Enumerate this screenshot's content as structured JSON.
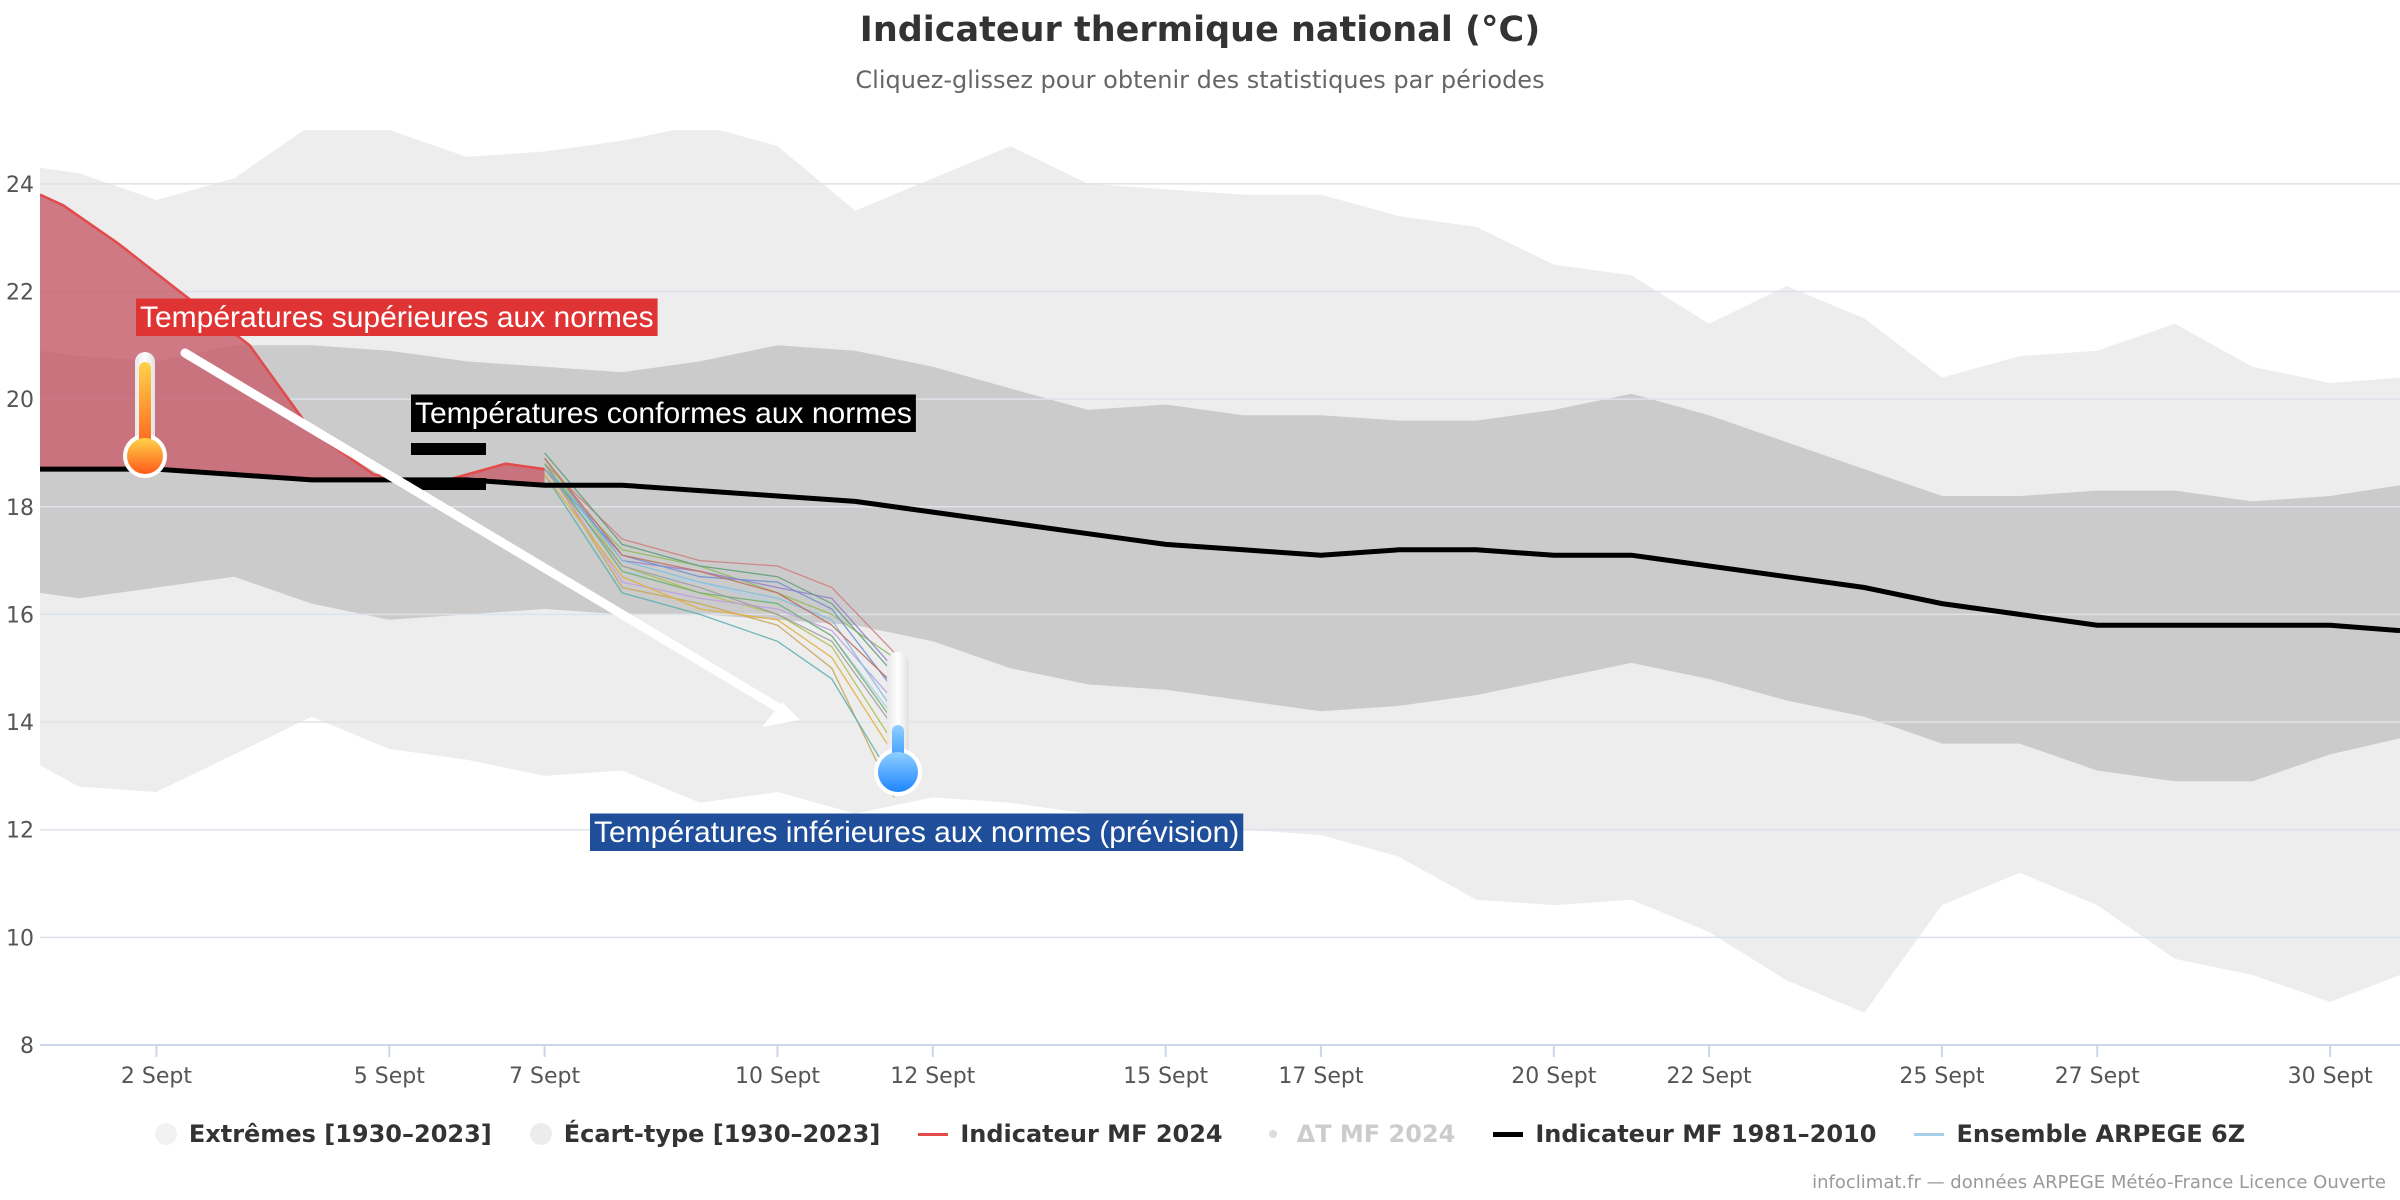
{
  "title": "Indicateur thermique national (°C)",
  "subtitle": "Cliquez-glissez pour obtenir des statistiques par périodes",
  "credits": "infoclimat.fr — données ARPEGE Météo-France Licence Ouverte",
  "colors": {
    "extremes": "#ededed",
    "ecart_type": "#cbcbcb",
    "mf2024": "#e34a4a",
    "mf2024_fill": "#c86470",
    "norm": "#000000",
    "ensemble": "#a8cfe8",
    "label_above": "#e03333",
    "label_norm": "#000000",
    "label_below": "#1f4e9a"
  },
  "legend": [
    {
      "label": "Extrêmes [1930–2023]",
      "symbol": "dot",
      "color": "#f2f2f2",
      "dim": false
    },
    {
      "label": "Écart-type [1930–2023]",
      "symbol": "dot",
      "color": "#ececec",
      "dim": false
    },
    {
      "label": "Indicateur MF 2024",
      "symbol": "line",
      "color": "#e34a4a",
      "dim": false
    },
    {
      "label": "ΔT MF 2024",
      "symbol": "smalldot",
      "color": "#dddddd",
      "dim": true
    },
    {
      "label": "Indicateur MF 1981–2010",
      "symbol": "thickline",
      "color": "#000000",
      "dim": false
    },
    {
      "label": "Ensemble ARPEGE 6Z",
      "symbol": "line",
      "color": "#a8cfe8",
      "dim": false
    }
  ],
  "annotations": {
    "above": "Températures supérieures aux normes",
    "normal": "Températures conformes aux normes",
    "below": "Températures inférieures aux normes (prévision)"
  },
  "chart_data": {
    "type": "area",
    "x_unit": "day of September 2024",
    "xlim": [
      0.5,
      30.9
    ],
    "ylim": [
      8,
      25
    ],
    "x_tick_days": [
      2,
      5,
      7,
      10,
      12,
      15,
      17,
      20,
      22,
      25,
      27,
      30
    ],
    "x_tick_labels": [
      "2 Sept",
      "5 Sept",
      "7 Sept",
      "10 Sept",
      "12 Sept",
      "15 Sept",
      "17 Sept",
      "20 Sept",
      "22 Sept",
      "25 Sept",
      "27 Sept",
      "30 Sept"
    ],
    "y_ticks": [
      8,
      10,
      12,
      14,
      16,
      18,
      20,
      22,
      24
    ],
    "grid": true,
    "days": [
      0.5,
      1,
      2,
      3,
      4,
      5,
      6,
      7,
      8,
      9,
      10,
      11,
      12,
      13,
      14,
      15,
      16,
      17,
      18,
      19,
      20,
      21,
      22,
      23,
      24,
      25,
      26,
      27,
      28,
      29,
      30,
      30.9
    ],
    "extremes_max": [
      24.3,
      24.2,
      23.7,
      24.1,
      25.1,
      25.0,
      24.5,
      24.6,
      24.8,
      25.1,
      24.7,
      23.5,
      24.1,
      24.7,
      24.0,
      23.9,
      23.8,
      23.8,
      23.4,
      23.2,
      22.5,
      22.3,
      21.4,
      22.1,
      21.5,
      20.4,
      20.8,
      20.9,
      21.4,
      20.6,
      20.3,
      20.4
    ],
    "extremes_min": [
      13.2,
      12.8,
      12.7,
      13.4,
      14.1,
      13.5,
      13.3,
      13.0,
      13.1,
      12.5,
      12.7,
      12.3,
      12.6,
      12.5,
      12.3,
      12.1,
      12.0,
      11.9,
      11.5,
      10.7,
      10.6,
      10.7,
      10.1,
      9.2,
      8.6,
      10.6,
      11.2,
      10.6,
      9.6,
      9.3,
      8.8,
      9.3
    ],
    "stddev_max": [
      20.9,
      20.8,
      20.7,
      21.0,
      21.0,
      20.9,
      20.7,
      20.6,
      20.5,
      20.7,
      21.0,
      20.9,
      20.6,
      20.2,
      19.8,
      19.9,
      19.7,
      19.7,
      19.6,
      19.6,
      19.8,
      20.1,
      19.7,
      19.2,
      18.7,
      18.2,
      18.2,
      18.3,
      18.3,
      18.1,
      18.2,
      18.4
    ],
    "stddev_min": [
      16.4,
      16.3,
      16.5,
      16.7,
      16.2,
      15.9,
      16.0,
      16.1,
      16.0,
      16.0,
      15.9,
      15.8,
      15.5,
      15.0,
      14.7,
      14.6,
      14.4,
      14.2,
      14.3,
      14.5,
      14.8,
      15.1,
      14.8,
      14.4,
      14.1,
      13.6,
      13.6,
      13.1,
      12.9,
      12.9,
      13.4,
      13.7
    ],
    "series": [
      {
        "name": "Indicateur MF 1981–2010",
        "days": [
          0.5,
          1,
          2,
          3,
          4,
          5,
          6,
          7,
          8,
          9,
          10,
          11,
          12,
          13,
          14,
          15,
          16,
          17,
          18,
          19,
          20,
          21,
          22,
          23,
          24,
          25,
          26,
          27,
          28,
          29,
          30,
          30.9
        ],
        "values": [
          18.7,
          18.7,
          18.7,
          18.6,
          18.5,
          18.5,
          18.5,
          18.4,
          18.4,
          18.3,
          18.2,
          18.1,
          17.9,
          17.7,
          17.5,
          17.3,
          17.2,
          17.1,
          17.2,
          17.2,
          17.1,
          17.1,
          16.9,
          16.7,
          16.5,
          16.2,
          16.0,
          15.8,
          15.8,
          15.8,
          15.8,
          15.7
        ]
      },
      {
        "name": "Indicateur MF 2024",
        "days": [
          0.5,
          0.8,
          1.5,
          2.3,
          3.2,
          4.0,
          4.8,
          5.5,
          6.0,
          6.5,
          7.0
        ],
        "values": [
          23.8,
          23.6,
          22.9,
          22.0,
          21.0,
          19.4,
          18.6,
          18.4,
          18.6,
          18.8,
          18.7
        ]
      }
    ],
    "ensemble_days": [
      7,
      8,
      9,
      10,
      10.7,
      11.5
    ],
    "ensemble_members": [
      [
        18.9,
        16.8,
        16.6,
        16.2,
        15.6,
        14.1
      ],
      [
        18.7,
        17.2,
        16.9,
        16.4,
        16.0,
        15.2
      ],
      [
        18.8,
        16.5,
        16.2,
        15.8,
        15.0,
        12.6
      ],
      [
        18.9,
        17.0,
        16.8,
        16.5,
        16.3,
        15.0
      ],
      [
        18.6,
        16.4,
        16.0,
        15.5,
        14.8,
        12.9
      ],
      [
        18.8,
        17.4,
        17.0,
        16.9,
        16.5,
        15.3
      ],
      [
        18.9,
        16.9,
        16.4,
        16.0,
        15.4,
        13.6
      ],
      [
        18.7,
        17.1,
        16.7,
        16.6,
        16.1,
        14.6
      ],
      [
        18.8,
        16.6,
        16.3,
        16.1,
        15.7,
        14.4
      ],
      [
        19.0,
        17.3,
        16.9,
        16.7,
        16.2,
        14.9
      ],
      [
        18.6,
        16.7,
        16.1,
        15.9,
        15.2,
        13.4
      ],
      [
        18.8,
        17.0,
        16.6,
        16.3,
        15.9,
        14.2
      ],
      [
        18.7,
        16.9,
        16.5,
        16.0,
        15.5,
        13.9
      ],
      [
        18.9,
        17.1,
        16.8,
        16.4,
        15.8,
        14.7
      ],
      [
        18.8,
        16.8,
        16.4,
        16.2,
        15.6,
        14.0
      ]
    ]
  }
}
